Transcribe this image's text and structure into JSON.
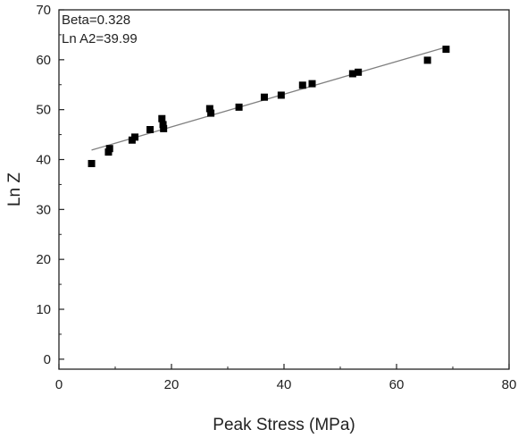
{
  "chart_data": {
    "type": "scatter",
    "title": "",
    "xlabel": "Peak Stress (MPa)",
    "ylabel": "Ln Z",
    "xlim": [
      0,
      80
    ],
    "ylim": [
      -2,
      70
    ],
    "xticks": [
      0,
      20,
      40,
      60,
      80
    ],
    "yticks": [
      0,
      10,
      20,
      30,
      40,
      50,
      60,
      70
    ],
    "grid": false,
    "legend": "none",
    "annotations": [
      "Beta=0.328",
      "Ln A2=39.99"
    ],
    "series": [
      {
        "marker": "square",
        "color": "#000000",
        "x": [
          5.8,
          8.8,
          9.0,
          13.0,
          13.5,
          16.2,
          18.3,
          18.5,
          18.6,
          26.8,
          27.0,
          32.0,
          36.5,
          39.5,
          43.3,
          45.0,
          52.2,
          53.2,
          65.5,
          68.8
        ],
        "y": [
          39.2,
          41.5,
          42.2,
          43.9,
          44.5,
          46.0,
          48.2,
          47.0,
          46.2,
          50.2,
          49.3,
          50.5,
          52.5,
          52.9,
          54.9,
          55.2,
          57.2,
          57.5,
          59.9,
          62.1
        ]
      }
    ],
    "fit_line": {
      "color": "#808080",
      "x": [
        5.8,
        69.0
      ],
      "y": [
        41.9,
        62.6
      ]
    }
  },
  "colors": {
    "axis": "#222222",
    "marker": "#000000",
    "fit": "#808080"
  }
}
